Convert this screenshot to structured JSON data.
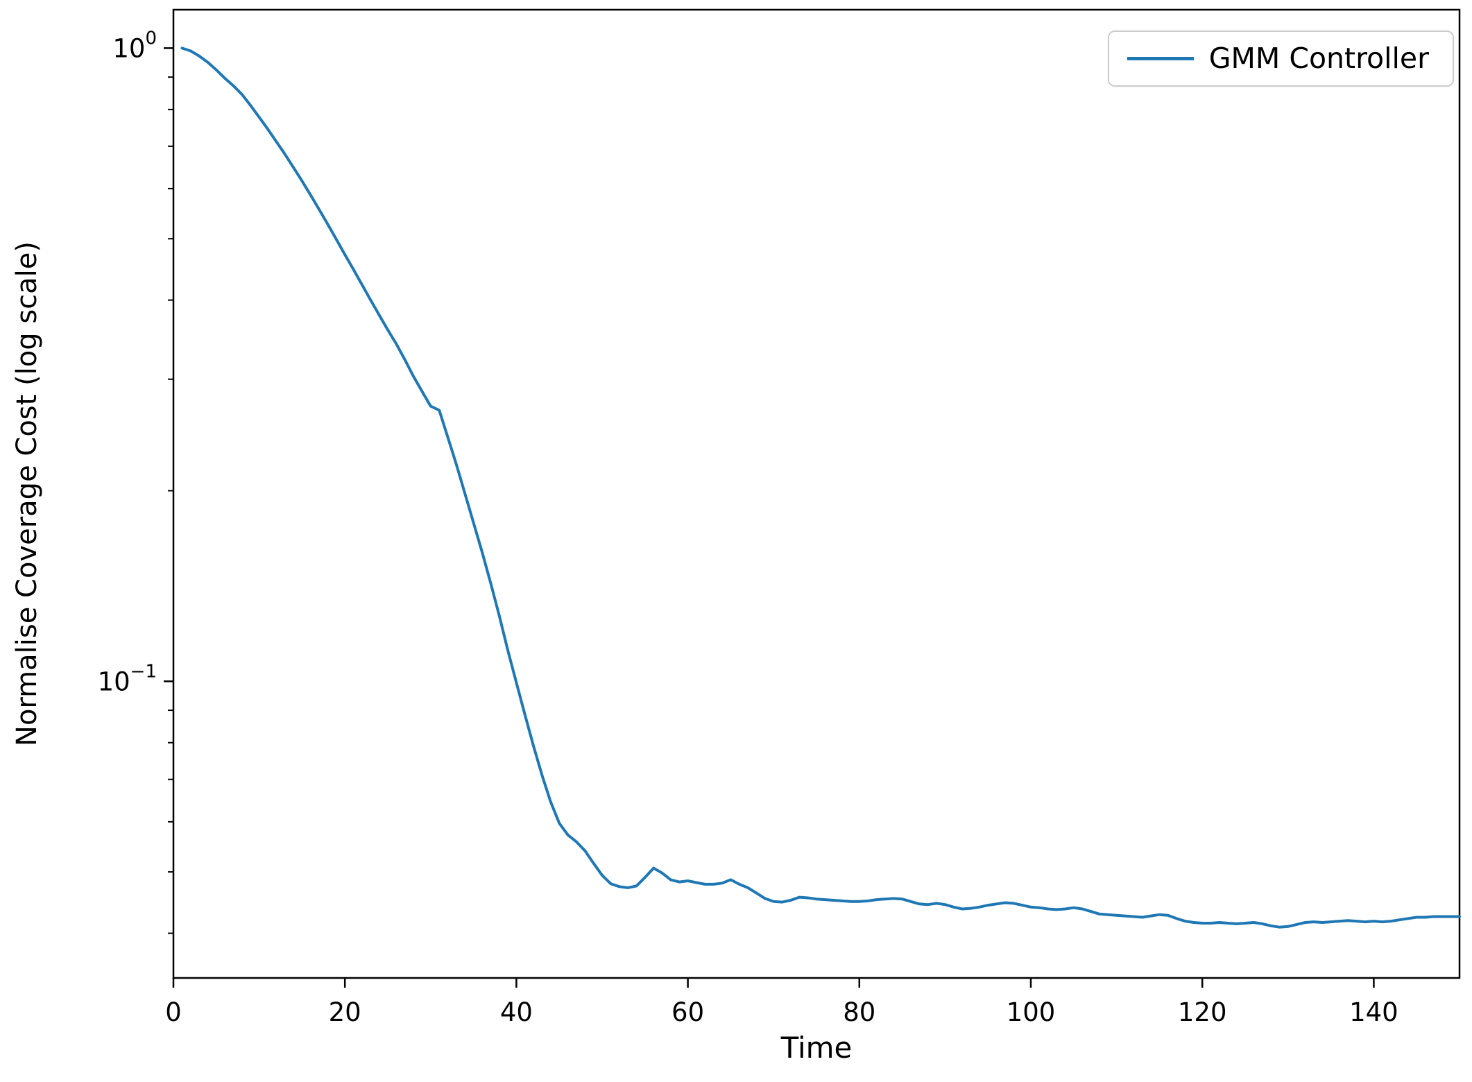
{
  "chart_data": {
    "type": "line",
    "title": "",
    "xlabel": "Time",
    "ylabel": "Normalise Coverage Cost (log scale)",
    "y_scale": "log",
    "xlim": [
      0,
      150
    ],
    "ylim": [
      0.034,
      1.15
    ],
    "x_ticks": [
      0,
      20,
      40,
      60,
      80,
      100,
      120,
      140
    ],
    "y_ticks": [
      {
        "value": 1,
        "base": "10",
        "exp": "0"
      },
      {
        "value": 0.1,
        "base": "10",
        "exp": "−1"
      }
    ],
    "y_minor_ticks": [
      0.9,
      0.8,
      0.7,
      0.6,
      0.5,
      0.4,
      0.3,
      0.2,
      0.09,
      0.08,
      0.07,
      0.06,
      0.05,
      0.04
    ],
    "grid": false,
    "legend": {
      "position": "upper right",
      "entries": [
        {
          "label": "GMM Controller",
          "color": "#1f77b4"
        }
      ]
    },
    "series": [
      {
        "name": "GMM Controller",
        "color": "#1f77b4",
        "x": [
          1,
          2,
          3,
          4,
          5,
          6,
          7,
          8,
          9,
          10,
          11,
          12,
          13,
          14,
          15,
          16,
          17,
          18,
          19,
          20,
          21,
          22,
          23,
          24,
          25,
          26,
          27,
          28,
          29,
          30,
          31,
          32,
          33,
          34,
          35,
          36,
          37,
          38,
          39,
          40,
          41,
          42,
          43,
          44,
          45,
          46,
          47,
          48,
          49,
          50,
          51,
          52,
          53,
          54,
          55,
          56,
          57,
          58,
          59,
          60,
          61,
          62,
          63,
          64,
          65,
          66,
          67,
          68,
          69,
          70,
          71,
          72,
          73,
          74,
          75,
          76,
          77,
          78,
          79,
          80,
          81,
          82,
          83,
          84,
          85,
          86,
          87,
          88,
          89,
          90,
          91,
          92,
          93,
          94,
          95,
          96,
          97,
          98,
          99,
          100,
          101,
          102,
          103,
          104,
          105,
          106,
          107,
          108,
          109,
          110,
          111,
          112,
          113,
          114,
          115,
          116,
          117,
          118,
          119,
          120,
          121,
          122,
          123,
          124,
          125,
          126,
          127,
          128,
          129,
          130,
          131,
          132,
          133,
          134,
          135,
          136,
          137,
          138,
          139,
          140,
          141,
          142,
          143,
          144,
          145,
          146,
          147,
          148,
          149,
          150
        ],
        "y": [
          1.0,
          0.99,
          0.972,
          0.95,
          0.924,
          0.896,
          0.872,
          0.845,
          0.812,
          0.778,
          0.745,
          0.712,
          0.68,
          0.648,
          0.617,
          0.586,
          0.556,
          0.527,
          0.499,
          0.472,
          0.447,
          0.423,
          0.4,
          0.379,
          0.359,
          0.341,
          0.322,
          0.303,
          0.287,
          0.272,
          0.268,
          0.243,
          0.22,
          0.198,
          0.178,
          0.16,
          0.143,
          0.127,
          0.112,
          0.0995,
          0.0885,
          0.079,
          0.071,
          0.0645,
          0.0597,
          0.0572,
          0.0558,
          0.054,
          0.0516,
          0.0494,
          0.0479,
          0.0474,
          0.0472,
          0.0475,
          0.049,
          0.0507,
          0.0498,
          0.0486,
          0.0482,
          0.0484,
          0.0481,
          0.0478,
          0.0478,
          0.048,
          0.0486,
          0.0478,
          0.0472,
          0.0463,
          0.0454,
          0.0449,
          0.0448,
          0.0451,
          0.0456,
          0.0455,
          0.0453,
          0.0452,
          0.0451,
          0.045,
          0.0449,
          0.0449,
          0.045,
          0.0452,
          0.0453,
          0.0454,
          0.0453,
          0.0449,
          0.0445,
          0.0444,
          0.0446,
          0.0444,
          0.044,
          0.0437,
          0.0438,
          0.044,
          0.0443,
          0.0445,
          0.0447,
          0.0446,
          0.0443,
          0.044,
          0.0439,
          0.0437,
          0.0436,
          0.0437,
          0.0439,
          0.0437,
          0.0433,
          0.0429,
          0.0428,
          0.0427,
          0.0426,
          0.0425,
          0.0424,
          0.0426,
          0.0428,
          0.0427,
          0.0422,
          0.0418,
          0.0416,
          0.0415,
          0.0415,
          0.0416,
          0.0415,
          0.0414,
          0.0415,
          0.0416,
          0.0414,
          0.0411,
          0.0409,
          0.041,
          0.0413,
          0.0416,
          0.0417,
          0.0416,
          0.0417,
          0.0418,
          0.0419,
          0.0418,
          0.0417,
          0.0418,
          0.0417,
          0.0418,
          0.042,
          0.0422,
          0.0424,
          0.0424,
          0.0425,
          0.0425,
          0.0425,
          0.0425
        ]
      }
    ]
  },
  "colors": {
    "line": "#1f77b4",
    "axis": "#000000",
    "background": "#ffffff",
    "legend_border": "#cccccc"
  }
}
